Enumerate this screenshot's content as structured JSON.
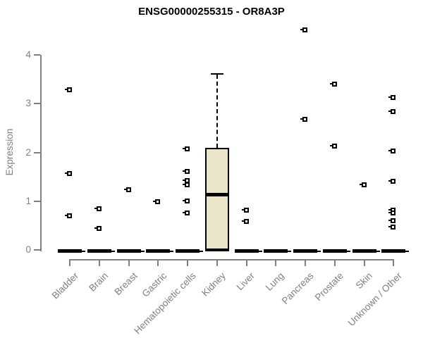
{
  "chart_data": {
    "type": "boxplot",
    "title": "ENSG00000255315 - OR8A3P",
    "ylabel": "Expression",
    "ylim": [
      0,
      4.6
    ],
    "y_ticks": [
      0,
      1,
      2,
      3,
      4
    ],
    "grid": false,
    "legend": "none",
    "axis_color": "#7f7f7f",
    "label_color": "#7f7f7f",
    "data_color": "#000000",
    "box_fill_color": "#eae5c9",
    "categories": [
      "Bladder",
      "Brain",
      "Breast",
      "Gastric",
      "Hematopoietic cells",
      "Kidney",
      "Liver",
      "Lung",
      "Pancreas",
      "Prostate",
      "Skin",
      "Unknown / Other"
    ],
    "series": [
      {
        "category": "Bladder",
        "box": {
          "whisker_low": 0,
          "q1": 0,
          "median": 0,
          "q3": 0,
          "whisker_high": 0
        },
        "outliers": [
          3.29,
          1.58,
          0.71
        ]
      },
      {
        "category": "Brain",
        "box": {
          "whisker_low": 0,
          "q1": 0,
          "median": 0,
          "q3": 0,
          "whisker_high": 0
        },
        "outliers": [
          0.85,
          0.45
        ]
      },
      {
        "category": "Breast",
        "box": {
          "whisker_low": 0,
          "q1": 0,
          "median": 0,
          "q3": 0,
          "whisker_high": 0
        },
        "outliers": [
          1.24
        ]
      },
      {
        "category": "Gastric",
        "box": {
          "whisker_low": 0,
          "q1": 0,
          "median": 0,
          "q3": 0,
          "whisker_high": 0
        },
        "outliers": [
          1.0
        ]
      },
      {
        "category": "Hematopoietic cells",
        "box": {
          "whisker_low": 0,
          "q1": 0,
          "median": 0,
          "q3": 0,
          "whisker_high": 0
        },
        "outliers": [
          2.08,
          1.62,
          1.43,
          1.34,
          1.01,
          0.76
        ]
      },
      {
        "category": "Kidney",
        "box": {
          "whisker_low": 0,
          "q1": 0,
          "median": 1.13,
          "q3": 2.1,
          "whisker_high": 3.61
        },
        "outliers": []
      },
      {
        "category": "Liver",
        "box": {
          "whisker_low": 0,
          "q1": 0,
          "median": 0,
          "q3": 0,
          "whisker_high": 0
        },
        "outliers": [
          0.83,
          0.59
        ]
      },
      {
        "category": "Lung",
        "box": {
          "whisker_low": 0,
          "q1": 0,
          "median": 0,
          "q3": 0,
          "whisker_high": 0
        },
        "outliers": []
      },
      {
        "category": "Pancreas",
        "box": {
          "whisker_low": 0,
          "q1": 0,
          "median": 0,
          "q3": 0,
          "whisker_high": 0
        },
        "outliers": [
          4.52,
          2.68
        ]
      },
      {
        "category": "Prostate",
        "box": {
          "whisker_low": 0,
          "q1": 0,
          "median": 0,
          "q3": 0,
          "whisker_high": 0
        },
        "outliers": [
          3.41,
          2.13
        ]
      },
      {
        "category": "Skin",
        "box": {
          "whisker_low": 0,
          "q1": 0,
          "median": 0,
          "q3": 0,
          "whisker_high": 0
        },
        "outliers": [
          1.35
        ]
      },
      {
        "category": "Unknown / Other",
        "box": {
          "whisker_low": 0,
          "q1": 0,
          "median": 0,
          "q3": 0,
          "whisker_high": 0
        },
        "outliers": [
          3.13,
          2.84,
          2.03,
          1.41,
          0.82,
          0.77,
          0.61,
          0.48
        ]
      }
    ]
  }
}
